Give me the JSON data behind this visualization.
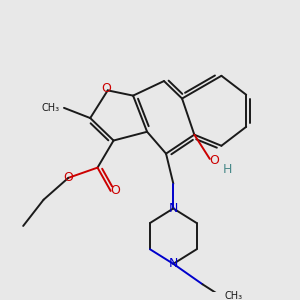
{
  "bg_color": "#e8e8e8",
  "bond_color": "#1a1a1a",
  "O_color": "#cc0000",
  "N_color": "#0000cc",
  "H_color": "#4a8a8a",
  "C_color": "#1a1a1a",
  "lw": 1.4,
  "dbo": 0.12,
  "fs": 8.5,
  "xlim": [
    0,
    10
  ],
  "ylim": [
    0,
    10
  ]
}
